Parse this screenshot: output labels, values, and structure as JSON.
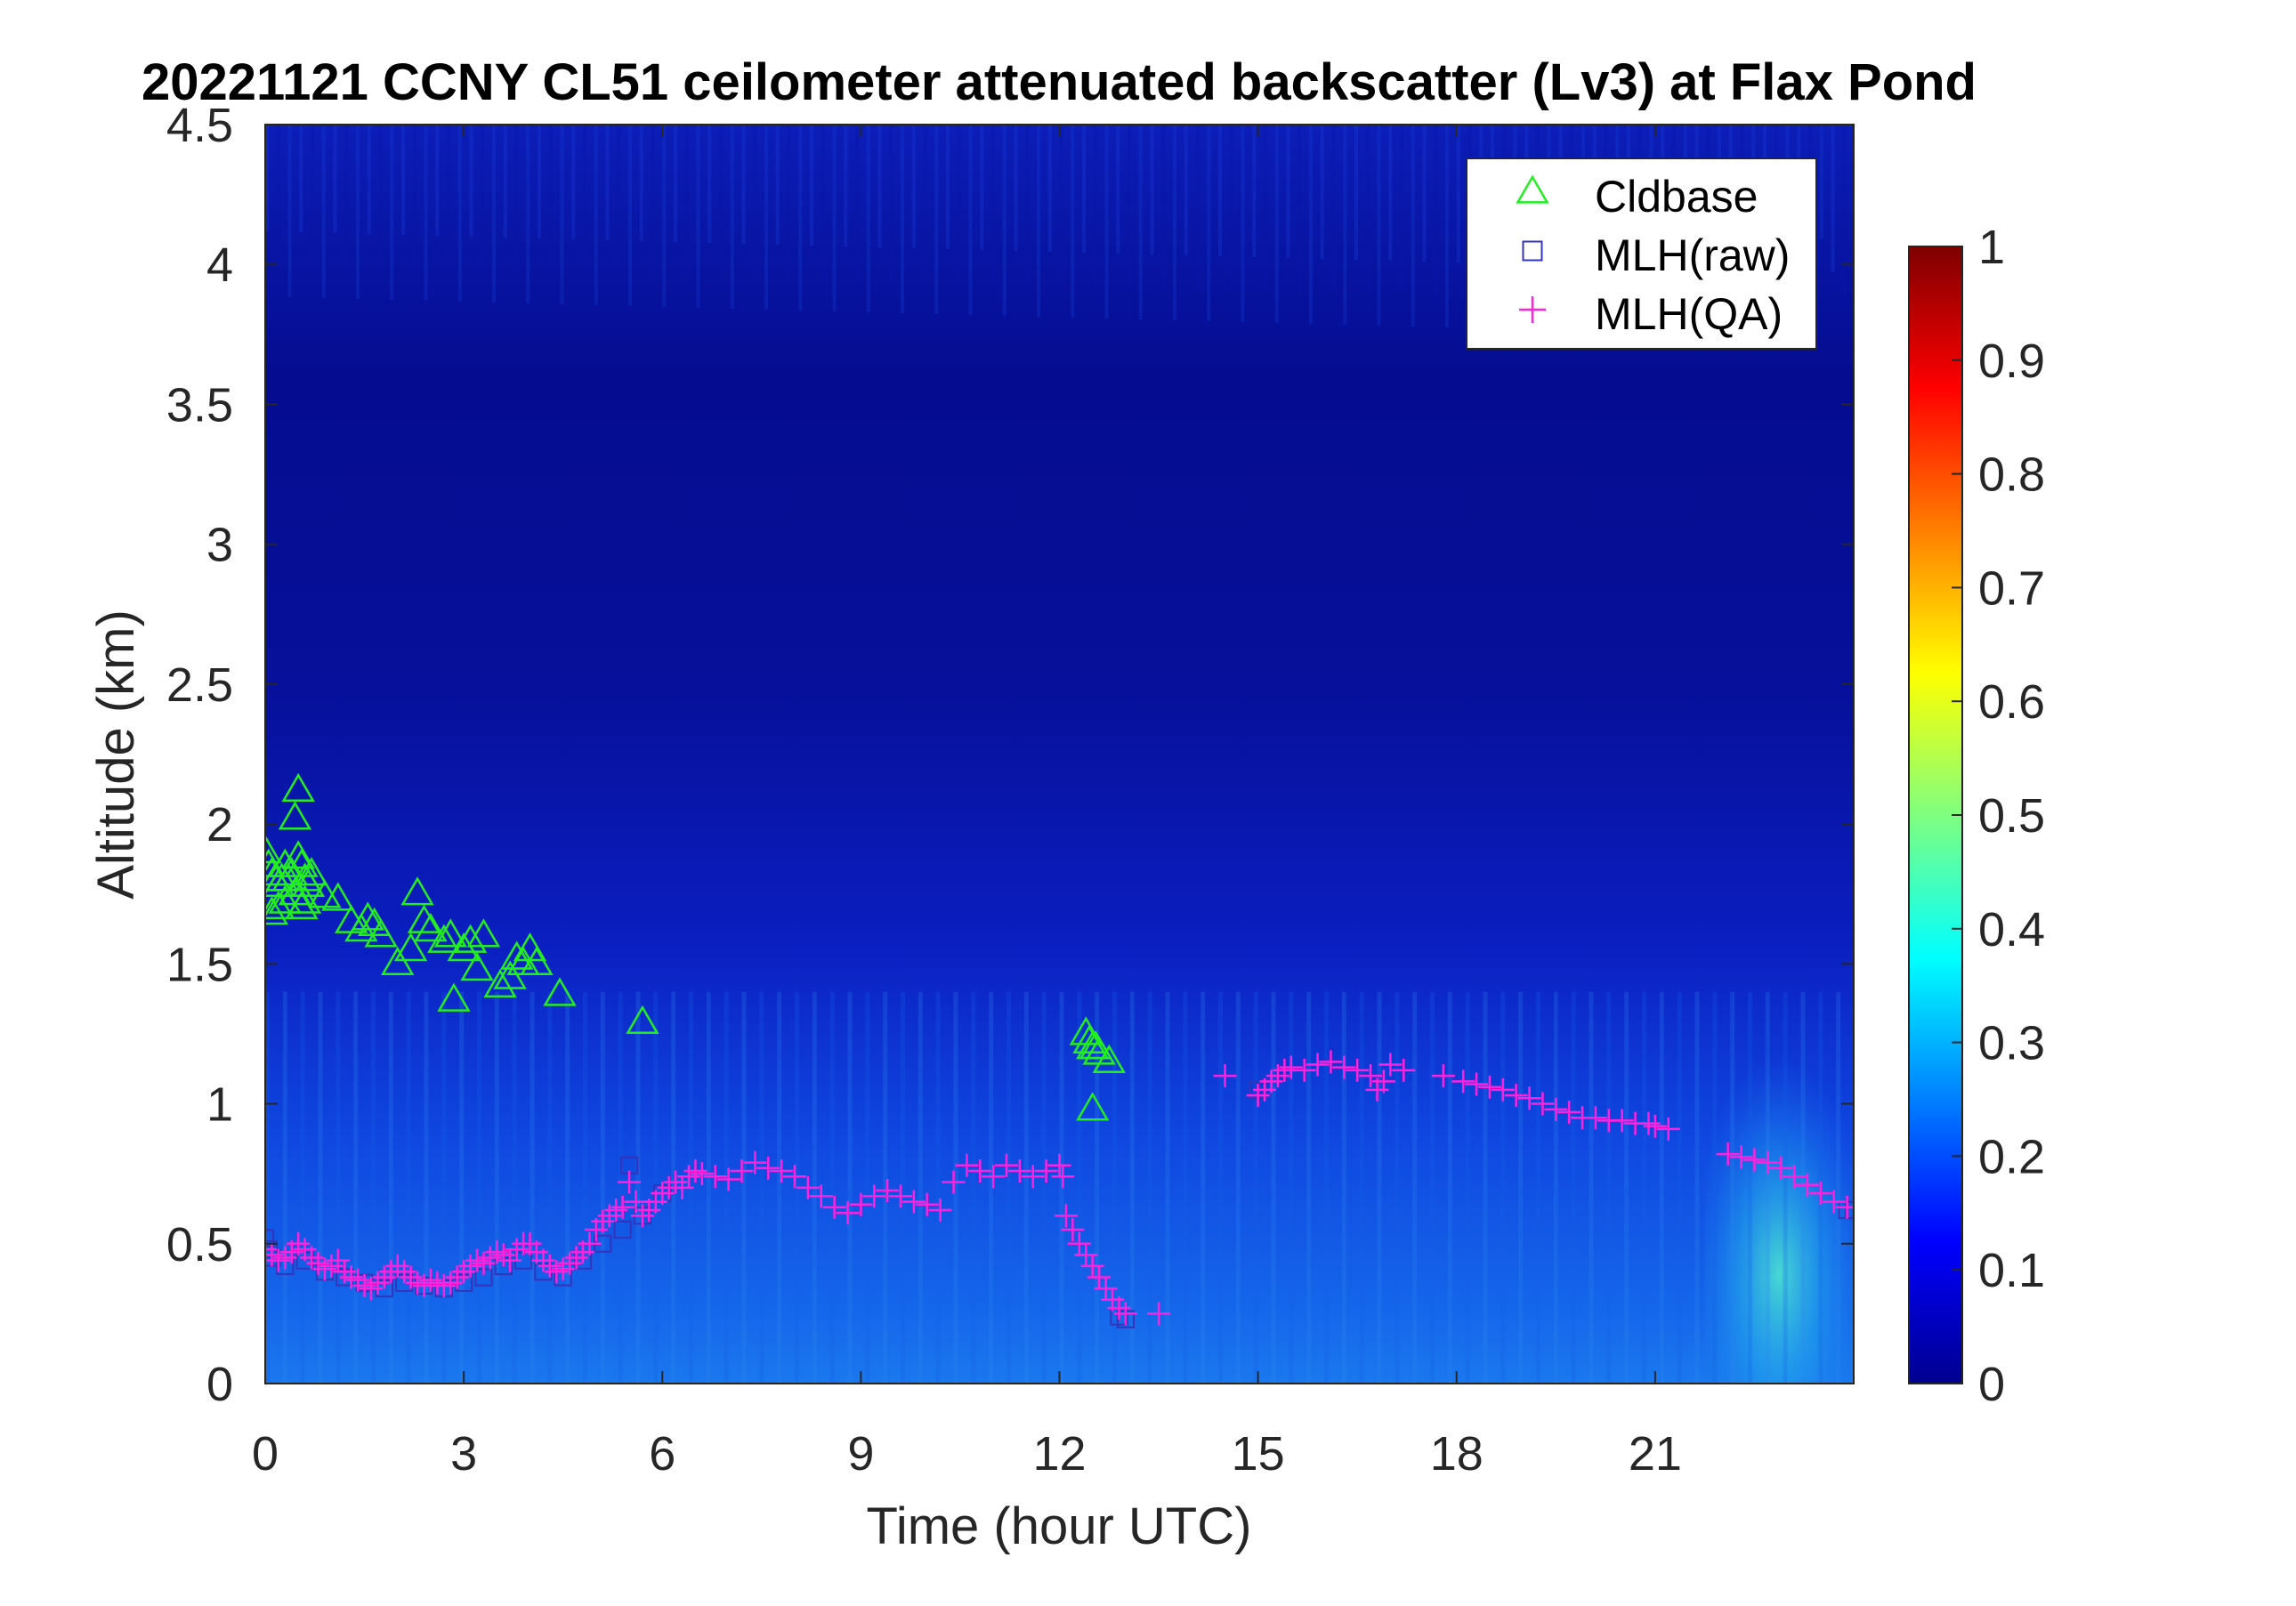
{
  "chart_data": {
    "type": "heatmap",
    "title": "20221121 CCNY CL51 ceilometer attenuated backscatter (Lv3) at Flax Pond",
    "xlabel": "Time (hour UTC)",
    "ylabel": "Altitude (km)",
    "xlim": [
      0,
      24
    ],
    "ylim": [
      0,
      4.5
    ],
    "x_ticks": [
      0,
      3,
      6,
      9,
      12,
      15,
      18,
      21
    ],
    "x_tick_labels": [
      "0",
      "3",
      "6",
      "9",
      "12",
      "15",
      "18",
      "21"
    ],
    "y_ticks": [
      0,
      0.5,
      1,
      1.5,
      2,
      2.5,
      3,
      3.5,
      4,
      4.5
    ],
    "y_tick_labels": [
      "0",
      "0.5",
      "1",
      "1.5",
      "2",
      "2.5",
      "3",
      "3.5",
      "4",
      "4.5"
    ],
    "colorbar": {
      "colormap": "jet",
      "range": [
        0,
        1
      ],
      "ticks": [
        0,
        0.1,
        0.2,
        0.3,
        0.4,
        0.5,
        0.6,
        0.7,
        0.8,
        0.9,
        1
      ],
      "tick_labels": [
        "0",
        "0.1",
        "0.2",
        "0.3",
        "0.4",
        "0.5",
        "0.6",
        "0.7",
        "0.8",
        "0.9",
        "1"
      ]
    },
    "legend": {
      "placement": "top-right",
      "entries": [
        {
          "label": "Cldbase",
          "marker": "triangle",
          "color": "#22ee22"
        },
        {
          "label": "MLH(raw)",
          "marker": "square",
          "color": "#3333bb"
        },
        {
          "label": "MLH(QA)",
          "marker": "plus",
          "color": "#ff22dd"
        }
      ]
    },
    "series": [
      {
        "name": "Cldbase",
        "marker": "triangle",
        "color": "#22ee22",
        "x": [
          0.0,
          0.05,
          0.1,
          0.15,
          0.2,
          0.25,
          0.3,
          0.35,
          0.4,
          0.45,
          0.5,
          0.5,
          0.55,
          0.6,
          0.65,
          0.7,
          0.1,
          0.2,
          0.3,
          0.45,
          0.55,
          0.6,
          0.9,
          1.1,
          1.3,
          1.45,
          1.55,
          1.65,
          1.75,
          2.0,
          2.2,
          2.3,
          2.4,
          2.5,
          2.7,
          2.8,
          3.0,
          3.1,
          3.2,
          3.3,
          3.55,
          3.7,
          3.8,
          3.9,
          4.0,
          4.1,
          2.85,
          4.45,
          5.7,
          12.4,
          12.45,
          12.5,
          12.55,
          12.6,
          12.75,
          12.5
        ],
        "y": [
          1.9,
          1.85,
          1.82,
          1.8,
          1.78,
          1.8,
          1.85,
          1.8,
          1.82,
          2.02,
          2.12,
          1.88,
          1.85,
          1.8,
          1.78,
          1.82,
          1.68,
          1.7,
          1.72,
          1.75,
          1.7,
          1.72,
          1.74,
          1.73,
          1.65,
          1.62,
          1.66,
          1.64,
          1.6,
          1.5,
          1.55,
          1.75,
          1.65,
          1.62,
          1.58,
          1.6,
          1.55,
          1.58,
          1.48,
          1.6,
          1.42,
          1.45,
          1.52,
          1.5,
          1.55,
          1.5,
          1.37,
          1.39,
          1.29,
          1.25,
          1.22,
          1.2,
          1.2,
          1.18,
          1.15,
          0.98
        ]
      },
      {
        "name": "MLH(raw)",
        "marker": "square",
        "color": "#3333bb",
        "x": [
          0.0,
          0.05,
          0.1,
          0.3,
          0.6,
          0.9,
          1.2,
          1.5,
          1.8,
          2.1,
          2.4,
          2.7,
          3.0,
          3.3,
          3.6,
          3.9,
          4.2,
          4.5,
          4.8,
          5.1,
          5.4,
          5.5,
          5.7,
          6.0,
          12.9,
          13.0,
          15.0,
          23.9,
          24.0
        ],
        "y": [
          0.52,
          0.48,
          0.45,
          0.42,
          0.44,
          0.4,
          0.38,
          0.36,
          0.34,
          0.36,
          0.35,
          0.34,
          0.36,
          0.38,
          0.42,
          0.44,
          0.4,
          0.38,
          0.44,
          0.5,
          0.55,
          0.78,
          0.6,
          0.68,
          0.24,
          0.23,
          1.05,
          0.62,
          0.62
        ]
      },
      {
        "name": "MLH(QA)",
        "marker": "plus",
        "color": "#ff22dd",
        "x": [
          0.0,
          0.1,
          0.2,
          0.3,
          0.4,
          0.5,
          0.6,
          0.7,
          0.8,
          0.9,
          1.0,
          1.1,
          1.2,
          1.3,
          1.4,
          1.5,
          1.6,
          1.7,
          1.8,
          1.9,
          2.0,
          2.1,
          2.2,
          2.3,
          2.4,
          2.5,
          2.6,
          2.7,
          2.8,
          2.9,
          3.0,
          3.1,
          3.2,
          3.3,
          3.4,
          3.5,
          3.6,
          3.7,
          3.8,
          3.9,
          4.0,
          4.1,
          4.2,
          4.3,
          4.4,
          4.5,
          4.6,
          4.7,
          4.8,
          4.9,
          5.0,
          5.1,
          5.2,
          5.3,
          5.4,
          5.5,
          5.6,
          5.7,
          5.8,
          5.9,
          6.0,
          6.1,
          6.2,
          6.3,
          6.4,
          6.5,
          6.6,
          6.8,
          7.0,
          7.2,
          7.4,
          7.6,
          7.8,
          8.0,
          8.2,
          8.4,
          8.6,
          8.8,
          9.0,
          9.2,
          9.4,
          9.6,
          9.8,
          10.0,
          10.2,
          10.4,
          10.6,
          10.8,
          11.0,
          11.2,
          11.4,
          11.6,
          11.8,
          12.0,
          12.05,
          12.1,
          12.2,
          12.3,
          12.4,
          12.5,
          12.6,
          12.7,
          12.8,
          12.9,
          13.0,
          13.5,
          14.5,
          15.0,
          15.1,
          15.2,
          15.3,
          15.4,
          15.5,
          15.7,
          15.9,
          16.1,
          16.3,
          16.5,
          16.7,
          16.8,
          16.9,
          17.0,
          17.2,
          17.8,
          18.1,
          18.3,
          18.5,
          18.7,
          18.9,
          19.1,
          19.3,
          19.5,
          19.7,
          19.9,
          20.1,
          20.3,
          20.5,
          20.7,
          20.9,
          21.0,
          21.2,
          22.1,
          22.3,
          22.5,
          22.7,
          22.9,
          23.1,
          23.3,
          23.5,
          23.7,
          23.9
        ],
        "y": [
          0.48,
          0.46,
          0.44,
          0.45,
          0.47,
          0.5,
          0.48,
          0.45,
          0.43,
          0.41,
          0.42,
          0.44,
          0.4,
          0.38,
          0.37,
          0.35,
          0.34,
          0.36,
          0.38,
          0.4,
          0.42,
          0.4,
          0.38,
          0.36,
          0.35,
          0.37,
          0.36,
          0.35,
          0.36,
          0.38,
          0.4,
          0.42,
          0.44,
          0.43,
          0.45,
          0.47,
          0.46,
          0.44,
          0.48,
          0.5,
          0.5,
          0.47,
          0.44,
          0.42,
          0.4,
          0.41,
          0.43,
          0.45,
          0.47,
          0.5,
          0.55,
          0.58,
          0.6,
          0.62,
          0.63,
          0.72,
          0.65,
          0.6,
          0.62,
          0.65,
          0.68,
          0.7,
          0.72,
          0.7,
          0.74,
          0.76,
          0.75,
          0.74,
          0.73,
          0.76,
          0.79,
          0.77,
          0.76,
          0.74,
          0.7,
          0.67,
          0.63,
          0.61,
          0.64,
          0.67,
          0.69,
          0.67,
          0.65,
          0.64,
          0.62,
          0.72,
          0.78,
          0.76,
          0.74,
          0.78,
          0.76,
          0.74,
          0.76,
          0.78,
          0.74,
          0.6,
          0.55,
          0.5,
          0.46,
          0.42,
          0.38,
          0.34,
          0.3,
          0.27,
          0.25,
          0.25,
          1.1,
          1.03,
          1.05,
          1.08,
          1.1,
          1.12,
          1.13,
          1.12,
          1.14,
          1.15,
          1.13,
          1.12,
          1.1,
          1.05,
          1.08,
          1.14,
          1.12,
          1.1,
          1.08,
          1.07,
          1.06,
          1.05,
          1.03,
          1.02,
          1.0,
          0.98,
          0.97,
          0.95,
          0.95,
          0.94,
          0.94,
          0.93,
          0.93,
          0.92,
          0.91,
          0.82,
          0.81,
          0.8,
          0.79,
          0.77,
          0.74,
          0.71,
          0.68,
          0.65,
          0.63
        ]
      }
    ]
  }
}
